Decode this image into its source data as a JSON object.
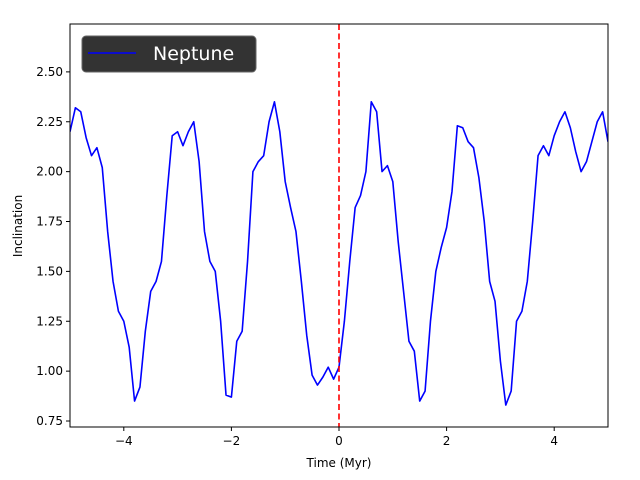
{
  "chart_data": {
    "type": "line",
    "xlabel": "Time (Myr)",
    "ylabel": "Inclination",
    "xlim": [
      -5,
      5
    ],
    "ylim": [
      0.72,
      2.74
    ],
    "xticks": [
      -4,
      -2,
      0,
      2,
      4
    ],
    "xtick_labels": [
      "−4",
      "−2",
      "0",
      "2",
      "4"
    ],
    "yticks": [
      0.75,
      1.0,
      1.25,
      1.5,
      1.75,
      2.0,
      2.25,
      2.5
    ],
    "ytick_labels": [
      "0.75",
      "1.00",
      "1.25",
      "1.50",
      "1.75",
      "2.00",
      "2.25",
      "2.50"
    ],
    "grid": false,
    "legend_position": "top-left",
    "legend_style": "dark",
    "vline": {
      "x": 0,
      "color": "#ff0000",
      "style": "dashed"
    },
    "series": [
      {
        "name": "Neptune",
        "color": "#0000ff",
        "x": [
          -5.0,
          -4.9,
          -4.8,
          -4.7,
          -4.6,
          -4.5,
          -4.4,
          -4.3,
          -4.2,
          -4.1,
          -4.0,
          -3.9,
          -3.8,
          -3.7,
          -3.6,
          -3.5,
          -3.4,
          -3.3,
          -3.2,
          -3.1,
          -3.0,
          -2.9,
          -2.8,
          -2.7,
          -2.6,
          -2.5,
          -2.4,
          -2.3,
          -2.2,
          -2.1,
          -2.0,
          -1.9,
          -1.8,
          -1.7,
          -1.6,
          -1.5,
          -1.4,
          -1.3,
          -1.2,
          -1.1,
          -1.0,
          -0.9,
          -0.8,
          -0.7,
          -0.6,
          -0.5,
          -0.4,
          -0.3,
          -0.2,
          -0.1,
          0.0,
          0.1,
          0.2,
          0.3,
          0.4,
          0.5,
          0.6,
          0.7,
          0.8,
          0.9,
          1.0,
          1.1,
          1.2,
          1.3,
          1.4,
          1.5,
          1.6,
          1.7,
          1.8,
          1.9,
          2.0,
          2.1,
          2.2,
          2.3,
          2.4,
          2.5,
          2.6,
          2.7,
          2.8,
          2.9,
          3.0,
          3.1,
          3.2,
          3.3,
          3.4,
          3.5,
          3.6,
          3.7,
          3.8,
          3.9,
          4.0,
          4.1,
          4.2,
          4.3,
          4.4,
          4.5,
          4.6,
          4.7,
          4.8,
          4.9,
          5.0
        ],
        "y": [
          2.2,
          2.32,
          2.3,
          2.17,
          2.08,
          2.12,
          2.02,
          1.7,
          1.45,
          1.3,
          1.25,
          1.12,
          0.85,
          0.92,
          1.2,
          1.4,
          1.45,
          1.55,
          1.88,
          2.18,
          2.2,
          2.13,
          2.2,
          2.25,
          2.05,
          1.7,
          1.55,
          1.5,
          1.25,
          0.88,
          0.87,
          1.15,
          1.2,
          1.55,
          2.0,
          2.05,
          2.08,
          2.25,
          2.35,
          2.2,
          1.95,
          1.82,
          1.7,
          1.45,
          1.18,
          0.98,
          0.93,
          0.97,
          1.02,
          0.96,
          1.02,
          1.25,
          1.55,
          1.82,
          1.88,
          2.0,
          2.35,
          2.3,
          2.0,
          2.03,
          1.95,
          1.65,
          1.4,
          1.15,
          1.1,
          0.85,
          0.9,
          1.25,
          1.5,
          1.62,
          1.72,
          1.9,
          2.23,
          2.22,
          2.15,
          2.12,
          1.97,
          1.75,
          1.45,
          1.35,
          1.05,
          0.83,
          0.9,
          1.25,
          1.3,
          1.45,
          1.75,
          2.08,
          2.13,
          2.08,
          2.18,
          2.25,
          2.3,
          2.22,
          2.1,
          2.0,
          2.05,
          2.15,
          2.25,
          2.3,
          2.15
        ]
      }
    ]
  }
}
